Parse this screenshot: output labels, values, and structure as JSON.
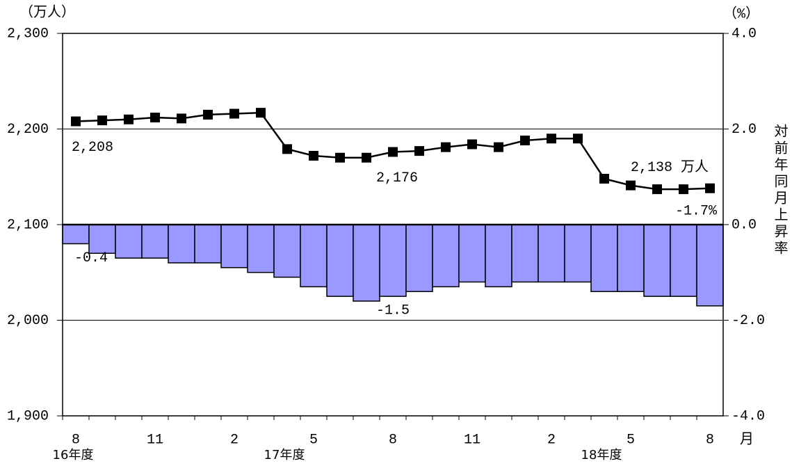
{
  "chart_data": {
    "type": "bar_line",
    "categories": [
      "8",
      null,
      null,
      "11",
      null,
      null,
      "2",
      null,
      null,
      "5",
      null,
      null,
      "8",
      null,
      null,
      "11",
      null,
      null,
      "2",
      null,
      null,
      "5",
      null,
      null,
      "8"
    ],
    "fiscal_year_labels": [
      "16年度",
      null,
      null,
      null,
      null,
      null,
      null,
      null,
      "17年度",
      null,
      null,
      null,
      null,
      null,
      null,
      null,
      null,
      null,
      null,
      null,
      "18年度",
      null,
      null,
      null,
      null
    ],
    "x_unit_label": "月",
    "y_unit_label": "（万人）",
    "y2_unit_label": "（%）",
    "y2_label": "対前年同月上昇率",
    "series": [
      {
        "type": "bar",
        "axis": "y2",
        "color": "#9999ff",
        "values": [
          -0.4,
          -0.6,
          -0.7,
          -0.7,
          -0.8,
          -0.8,
          -0.9,
          -1.0,
          -1.1,
          -1.3,
          -1.5,
          -1.6,
          -1.5,
          -1.4,
          -1.3,
          -1.2,
          -1.3,
          -1.2,
          -1.2,
          -1.2,
          -1.4,
          -1.4,
          -1.5,
          -1.5,
          -1.7
        ],
        "value_labels": [
          "-0.4",
          null,
          null,
          null,
          null,
          null,
          null,
          null,
          null,
          null,
          null,
          null,
          "-1.5",
          null,
          null,
          null,
          null,
          null,
          null,
          null,
          null,
          null,
          null,
          null,
          "-1.7%"
        ]
      },
      {
        "type": "line",
        "axis": "y",
        "color": "#000000",
        "values": [
          2208,
          2209,
          2210,
          2212,
          2211,
          2215,
          2216,
          2217,
          2179,
          2172,
          2170,
          2170,
          2176,
          2177,
          2181,
          2184,
          2181,
          2188,
          2190,
          2190,
          2148,
          2141,
          2137,
          2137,
          2138
        ],
        "value_labels": [
          "2,208",
          null,
          null,
          null,
          null,
          null,
          null,
          null,
          null,
          null,
          null,
          null,
          "2,176",
          null,
          null,
          null,
          null,
          null,
          null,
          null,
          null,
          null,
          null,
          null,
          "2,138 万人"
        ]
      }
    ],
    "ylim": [
      1900,
      2300
    ],
    "yticks": [
      {
        "value": 1900,
        "label": "1,900"
      },
      {
        "value": 2000,
        "label": "2,000"
      },
      {
        "value": 2100,
        "label": "2,100"
      },
      {
        "value": 2200,
        "label": "2,200"
      },
      {
        "value": 2300,
        "label": "2,300"
      }
    ],
    "y2lim": [
      -4.0,
      4.0
    ],
    "y2ticks": [
      {
        "value": -4.0,
        "label": "-4.0"
      },
      {
        "value": -2.0,
        "label": "-2.0"
      },
      {
        "value": 0.0,
        "label": "0.0"
      },
      {
        "value": 2.0,
        "label": "2.0"
      },
      {
        "value": 4.0,
        "label": "4.0"
      }
    ],
    "grid": true
  }
}
